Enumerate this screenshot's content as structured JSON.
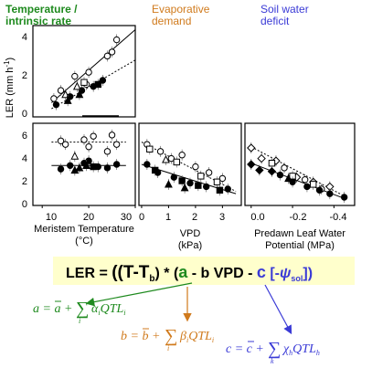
{
  "header": {
    "temperature": [
      "Temperature /",
      "intrinsic rate"
    ],
    "evaporative": [
      "Evaporative",
      "demand"
    ],
    "soil": [
      "Soil water",
      "deficit"
    ]
  },
  "colors": {
    "temperature": "#1e8a1e",
    "evaporative": "#d07a1c",
    "soil": "#3a3ad6",
    "ink": "#000000",
    "formula_bg": "#ffffcc"
  },
  "axes": {
    "y_label": "LER (mm h",
    "y_label_sup": "-1",
    "top_y_ticks": [
      "4",
      "2",
      "0"
    ],
    "mid_y_ticks": [
      "6",
      "4",
      "2",
      "0"
    ],
    "temperature_x_ticks": [
      "10",
      "20",
      "30"
    ],
    "vpd_x_ticks": [
      "0",
      "1",
      "2",
      "3"
    ],
    "potential_x_ticks": [
      "0.0",
      "-0.2",
      "-0.4"
    ],
    "temperature_label": [
      "Meristem Temperature",
      "(°C)"
    ],
    "vpd_label": [
      "VPD",
      "(kPa)"
    ],
    "potential_label": [
      "Predawn Leaf Water",
      "Potential (MPa)"
    ]
  },
  "formula": {
    "lhs": "LER = ",
    "open": "((T-T",
    "sub_b": "b",
    "mult": ") * (",
    "a": "a",
    "minus_b_vpd": " - b VPD - ",
    "c": "c",
    "bracket": " [-",
    "psi": "ψ",
    "psi_sub": "sol",
    "close": "])"
  },
  "equations": {
    "a": {
      "var": "a",
      "bar": "a",
      "coef": "α",
      "qtl": "QTL",
      "sub": "i",
      "idx": "i"
    },
    "b": {
      "var": "b",
      "bar": "b",
      "coef": "β",
      "qtl": "QTL",
      "sub": "i",
      "idx": "i"
    },
    "c": {
      "var": "c",
      "bar": "c",
      "coef": "χ",
      "qtl": "QTL",
      "sub": "h",
      "idx": "k"
    }
  },
  "chart_data": [
    {
      "type": "scatter",
      "panel": "temperature-top",
      "ylabel": "LER (mm h-1)",
      "ylim": [
        0,
        4.5
      ],
      "xlim": [
        8,
        30
      ],
      "series": [
        {
          "marker": "open-circle",
          "points": [
            [
              12.5,
              0.9
            ],
            [
              14,
              1.3
            ],
            [
              17,
              2.0
            ],
            [
              19.5,
              1.6
            ],
            [
              20,
              2.2
            ],
            [
              24,
              3.0
            ],
            [
              25,
              3.2
            ],
            [
              26,
              3.8
            ]
          ]
        },
        {
          "marker": "open-triangle",
          "points": [
            [
              15,
              1.1
            ],
            [
              17.5,
              1.5
            ]
          ]
        },
        {
          "marker": "filled-circle",
          "points": [
            [
              13,
              0.6
            ],
            [
              16,
              1.0
            ],
            [
              18.5,
              1.3
            ],
            [
              21,
              1.5
            ],
            [
              23,
              1.8
            ]
          ]
        },
        {
          "marker": "filled-triangle",
          "points": [
            [
              15.5,
              0.8
            ],
            [
              18,
              1.1
            ]
          ]
        },
        {
          "marker": "open-square",
          "points": [
            [
              19,
              1.7
            ]
          ]
        },
        {
          "marker": "filled-square",
          "points": [
            [
              22,
              1.6
            ]
          ]
        }
      ],
      "fits": [
        {
          "style": "solid",
          "from": [
            12,
            0.7
          ],
          "to": [
            30,
            4.3
          ]
        },
        {
          "style": "dotted",
          "from": [
            12,
            0.4
          ],
          "to": [
            30,
            2.8
          ]
        }
      ]
    },
    {
      "type": "scatter",
      "panel": "temperature-middle",
      "ylim": [
        0,
        7
      ],
      "xlim": [
        8,
        30
      ],
      "xticks": [
        10,
        20,
        30
      ],
      "series": [
        {
          "marker": "open-circle",
          "points": [
            [
              14,
              5.5
            ],
            [
              15,
              5.2
            ],
            [
              19,
              5.6
            ],
            [
              20,
              5.0
            ],
            [
              21,
              5.9
            ],
            [
              24,
              4.6
            ],
            [
              25,
              6.0
            ],
            [
              26,
              5.2
            ]
          ]
        },
        {
          "marker": "open-triangle",
          "points": [
            [
              17,
              4.2
            ]
          ]
        },
        {
          "marker": "filled-circle",
          "points": [
            [
              14,
              3.1
            ],
            [
              16,
              3.4
            ],
            [
              19,
              3.6
            ],
            [
              20,
              3.8
            ],
            [
              22,
              3.3
            ],
            [
              24,
              3.2
            ],
            [
              26,
              3.5
            ]
          ]
        },
        {
          "marker": "filled-triangle",
          "points": [
            [
              17,
              3.0
            ],
            [
              18,
              3.2
            ],
            [
              19.5,
              3.4
            ]
          ]
        },
        {
          "marker": "filled-square",
          "points": [
            [
              21,
              3.3
            ]
          ]
        }
      ],
      "fits": [
        {
          "style": "solid",
          "from": [
            12,
            3.4
          ],
          "to": [
            28,
            3.4
          ]
        },
        {
          "style": "dotted",
          "from": [
            12,
            5.4
          ],
          "to": [
            28,
            5.4
          ]
        }
      ]
    },
    {
      "type": "scatter",
      "panel": "vpd",
      "xlabel": "VPD (kPa)",
      "ylim": [
        0,
        7
      ],
      "xlim": [
        -0.1,
        3.7
      ],
      "xticks": [
        0,
        1,
        2,
        3
      ],
      "series": [
        {
          "marker": "open-circle",
          "points": [
            [
              0.2,
              5.2
            ],
            [
              0.7,
              4.6
            ],
            [
              1.1,
              4.0
            ],
            [
              1.5,
              4.3
            ],
            [
              2.0,
              3.3
            ],
            [
              2.5,
              2.8
            ],
            [
              3.0,
              2.3
            ]
          ]
        },
        {
          "marker": "open-square",
          "points": [
            [
              0.3,
              4.8
            ],
            [
              1.3,
              3.7
            ],
            [
              2.2,
              2.5
            ],
            [
              2.8,
              2.0
            ]
          ]
        },
        {
          "marker": "open-triangle",
          "points": [
            [
              0.9,
              3.9
            ]
          ]
        },
        {
          "marker": "filled-circle",
          "points": [
            [
              0.2,
              3.5
            ],
            [
              0.6,
              2.8
            ],
            [
              1.2,
              2.4
            ],
            [
              1.8,
              1.9
            ],
            [
              2.4,
              1.6
            ],
            [
              3.2,
              1.4
            ]
          ]
        },
        {
          "marker": "filled-square",
          "points": [
            [
              0.5,
              3.0
            ],
            [
              1.5,
              2.1
            ],
            [
              2.1,
              1.7
            ],
            [
              2.9,
              1.3
            ]
          ]
        },
        {
          "marker": "filled-triangle",
          "points": [
            [
              1.0,
              1.8
            ],
            [
              1.6,
              1.5
            ]
          ]
        }
      ],
      "fits": [
        {
          "style": "solid",
          "from": [
            0,
            3.5
          ],
          "to": [
            3.5,
            1.0
          ]
        },
        {
          "style": "dotted",
          "from": [
            0,
            5.4
          ],
          "to": [
            3.5,
            1.2
          ]
        }
      ]
    },
    {
      "type": "scatter",
      "panel": "predawn-potential",
      "xlabel": "Predawn Leaf Water Potential (MPa)",
      "ylim": [
        0,
        7
      ],
      "xlim": [
        0.03,
        -0.5
      ],
      "xticks": [
        0.0,
        -0.2,
        -0.4
      ],
      "series": [
        {
          "marker": "open-diamond",
          "points": [
            [
              0.0,
              4.9
            ],
            [
              -0.05,
              4.0
            ],
            [
              -0.12,
              3.8
            ],
            [
              -0.22,
              2.4
            ],
            [
              -0.3,
              2.0
            ],
            [
              -0.38,
              1.6
            ]
          ]
        },
        {
          "marker": "open-square",
          "points": [
            [
              -0.1,
              3.6
            ],
            [
              -0.2,
              2.5
            ],
            [
              -0.3,
              1.8
            ]
          ]
        },
        {
          "marker": "open-circle",
          "points": [
            [
              -0.16,
              3.2
            ],
            [
              -0.26,
              2.2
            ],
            [
              -0.34,
              1.4
            ]
          ]
        },
        {
          "marker": "filled-diamond",
          "points": [
            [
              0.0,
              3.5
            ],
            [
              -0.04,
              3.0
            ],
            [
              -0.1,
              2.9
            ]
          ]
        },
        {
          "marker": "filled-circle",
          "points": [
            [
              -0.14,
              2.6
            ],
            [
              -0.2,
              2.0
            ],
            [
              -0.27,
              1.6
            ],
            [
              -0.33,
              1.3
            ],
            [
              -0.38,
              1.0
            ],
            [
              -0.45,
              0.7
            ]
          ]
        },
        {
          "marker": "filled-triangle",
          "points": [
            [
              -0.18,
              2.3
            ]
          ]
        }
      ],
      "fits": [
        {
          "style": "solid",
          "from": [
            0.0,
            3.6
          ],
          "to": [
            -0.45,
            0.6
          ]
        },
        {
          "style": "dotted",
          "from": [
            0.0,
            5.0
          ],
          "to": [
            -0.45,
            0.8
          ]
        }
      ]
    }
  ]
}
